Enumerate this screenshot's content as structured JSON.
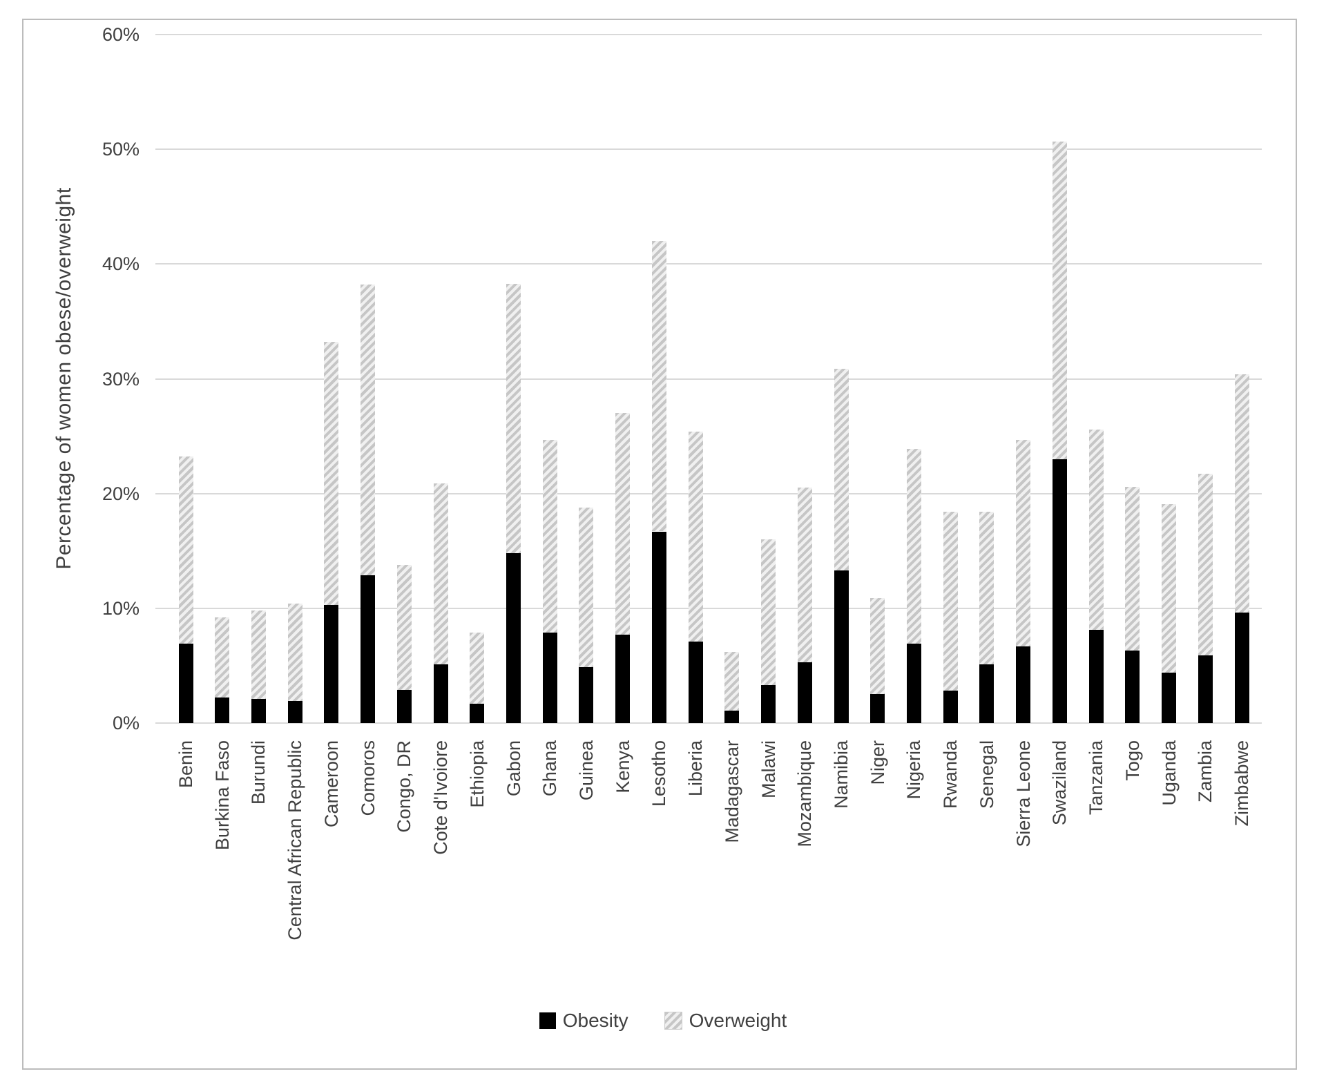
{
  "chart_data": {
    "type": "bar",
    "stacked": true,
    "title": "",
    "xlabel": "",
    "ylabel": "Percentage of women obese/overweight",
    "ylim": [
      0,
      60
    ],
    "grid": "horizontal",
    "legend_position": "bottom",
    "yticks": [
      {
        "value": 0,
        "label": "0%"
      },
      {
        "value": 10,
        "label": "10%"
      },
      {
        "value": 20,
        "label": "20%"
      },
      {
        "value": 30,
        "label": "30%"
      },
      {
        "value": 40,
        "label": "40%"
      },
      {
        "value": 50,
        "label": "50%"
      },
      {
        "value": 60,
        "label": "60%"
      }
    ],
    "categories": [
      "Benin",
      "Burkina Faso",
      "Burundi",
      "Central African Republic",
      "Cameroon",
      "Comoros",
      "Congo, DR",
      "Cote d'Ivoiore",
      "Ethiopia",
      "Gabon",
      "Ghana",
      "Guinea",
      "Kenya",
      "Lesotho",
      "Liberia",
      "Madagascar",
      "Malawi",
      "Mozambique",
      "Namibia",
      "Niger",
      "Nigeria",
      "Rwanda",
      "Senegal",
      "Sierra Leone",
      "Swaziland",
      "Tanzania",
      "Togo",
      "Uganda",
      "Zambia",
      "Zimbabwe"
    ],
    "series": [
      {
        "name": "Obesity",
        "color": "#000000",
        "pattern": "solid",
        "values": [
          6.9,
          2.2,
          2.1,
          1.9,
          10.3,
          12.9,
          2.9,
          5.1,
          1.7,
          14.8,
          7.9,
          4.9,
          7.7,
          16.7,
          7.1,
          1.1,
          3.3,
          5.3,
          13.3,
          2.5,
          6.9,
          2.8,
          5.1,
          6.7,
          23.0,
          8.1,
          6.3,
          4.4,
          5.9,
          9.6
        ]
      },
      {
        "name": "Overweight",
        "color": "#c6c6c6",
        "pattern": "diagonal-hatch",
        "values": [
          16.3,
          7.0,
          7.7,
          8.5,
          22.9,
          25.3,
          10.9,
          15.8,
          6.2,
          23.5,
          16.8,
          13.9,
          19.3,
          25.3,
          18.3,
          5.1,
          12.7,
          15.2,
          17.6,
          8.4,
          17.0,
          15.6,
          13.3,
          18.0,
          27.7,
          17.5,
          14.3,
          14.7,
          15.8,
          20.8
        ]
      }
    ],
    "stack_totals": [
      23.2,
      9.2,
      9.8,
      10.4,
      33.2,
      38.2,
      13.8,
      20.9,
      7.9,
      38.3,
      24.7,
      18.8,
      27.0,
      42.0,
      25.4,
      6.2,
      16.0,
      20.5,
      30.9,
      10.9,
      23.9,
      18.4,
      18.4,
      24.7,
      50.7,
      25.6,
      20.6,
      19.1,
      21.7,
      30.4
    ]
  },
  "colors": {
    "gridline": "#d9d9d9",
    "axis_text": "#404040",
    "frame_border": "#bcbcbc",
    "obesity": "#000000",
    "overweight_hatch": "#c6c6c6"
  }
}
